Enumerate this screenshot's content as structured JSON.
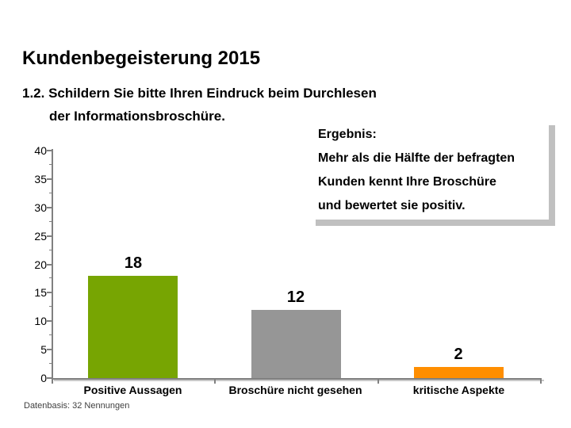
{
  "slide": {
    "title": "Kundenbegeisterung 2015",
    "question_line1": "1.2. Schildern Sie bitte Ihren Eindruck beim Durchlesen",
    "question_line2": "der Informationsbroschüre.",
    "footer": "Datenbasis: 32 Nennungen"
  },
  "result_box": {
    "heading": "Ergebnis:",
    "lines": [
      "Mehr als die Hälfte der befragten",
      "Kunden kennt Ihre Broschüre",
      "und bewertet sie positiv."
    ],
    "shadow_color": "#C0C0C0"
  },
  "chart_data": {
    "type": "bar",
    "categories": [
      "Positive Aussagen",
      "Broschüre nicht gesehen",
      "kritische Aspekte"
    ],
    "values": [
      18,
      12,
      2
    ],
    "bar_colors": [
      "#77A502",
      "#969696",
      "#FF8E00"
    ],
    "title": "",
    "xlabel": "",
    "ylabel": "",
    "ylim": [
      0,
      40
    ],
    "y_major_step": 5,
    "y_minor_step": 2.5,
    "y_tick_labels": [
      "0",
      "5",
      "10",
      "15",
      "20",
      "25",
      "30",
      "35",
      "40"
    ],
    "grid": false,
    "legend": false,
    "data_labels_shown": true,
    "axis_color": "#808080",
    "axis_shadow_color": "#C8C8C8"
  }
}
